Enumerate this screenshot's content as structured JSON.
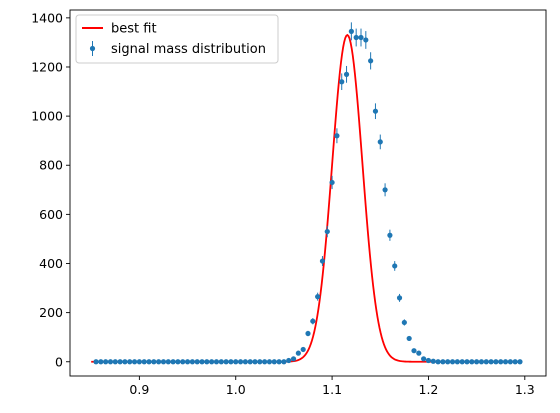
{
  "chart_data": {
    "type": "scatter",
    "title": "",
    "xlabel": "",
    "ylabel": "",
    "xlim": [
      0.828,
      1.322
    ],
    "ylim": [
      -58,
      1432
    ],
    "x_ticks": [
      0.9,
      1.0,
      1.1,
      1.2,
      1.3
    ],
    "x_tick_labels": [
      "0.9",
      "1.0",
      "1.1",
      "1.2",
      "1.3"
    ],
    "y_ticks": [
      0,
      200,
      400,
      600,
      800,
      1000,
      1200,
      1400
    ],
    "y_tick_labels": [
      "0",
      "200",
      "400",
      "600",
      "800",
      "1000",
      "1200",
      "1400"
    ],
    "grid": false,
    "legend_position": "top-left",
    "series": [
      {
        "name": "best fit",
        "kind": "line",
        "color": "#ff0000",
        "model": "gaussian",
        "amplitude": 1330,
        "mean": 1.1158,
        "sigma": 0.0157,
        "x_range": [
          0.85,
          1.295
        ]
      },
      {
        "name": "signal mass distribution",
        "kind": "errorbar",
        "color": "#1f77b4",
        "points": [
          [
            0.855,
            0
          ],
          [
            0.86,
            0
          ],
          [
            0.865,
            0
          ],
          [
            0.87,
            0
          ],
          [
            0.875,
            0
          ],
          [
            0.88,
            0
          ],
          [
            0.885,
            0
          ],
          [
            0.89,
            0
          ],
          [
            0.895,
            0
          ],
          [
            0.9,
            0
          ],
          [
            0.905,
            0
          ],
          [
            0.91,
            0
          ],
          [
            0.915,
            0
          ],
          [
            0.92,
            0
          ],
          [
            0.925,
            0
          ],
          [
            0.93,
            0
          ],
          [
            0.935,
            0
          ],
          [
            0.94,
            0
          ],
          [
            0.945,
            0
          ],
          [
            0.95,
            0
          ],
          [
            0.955,
            0
          ],
          [
            0.96,
            0
          ],
          [
            0.965,
            0
          ],
          [
            0.97,
            0
          ],
          [
            0.975,
            0
          ],
          [
            0.98,
            0
          ],
          [
            0.985,
            0
          ],
          [
            0.99,
            0
          ],
          [
            0.995,
            0
          ],
          [
            1.0,
            0
          ],
          [
            1.005,
            0
          ],
          [
            1.01,
            0
          ],
          [
            1.015,
            0
          ],
          [
            1.02,
            0
          ],
          [
            1.025,
            0
          ],
          [
            1.03,
            0
          ],
          [
            1.035,
            0
          ],
          [
            1.04,
            0
          ],
          [
            1.045,
            0
          ],
          [
            1.05,
            0
          ],
          [
            1.055,
            5
          ],
          [
            1.06,
            12
          ],
          [
            1.065,
            35
          ],
          [
            1.07,
            50
          ],
          [
            1.075,
            115
          ],
          [
            1.08,
            165
          ],
          [
            1.085,
            265
          ],
          [
            1.09,
            410
          ],
          [
            1.095,
            530
          ],
          [
            1.1,
            730
          ],
          [
            1.105,
            920
          ],
          [
            1.11,
            1140
          ],
          [
            1.115,
            1170
          ],
          [
            1.12,
            1345
          ],
          [
            1.125,
            1320
          ],
          [
            1.13,
            1320
          ],
          [
            1.135,
            1310
          ],
          [
            1.14,
            1225
          ],
          [
            1.145,
            1020
          ],
          [
            1.15,
            895
          ],
          [
            1.155,
            700
          ],
          [
            1.16,
            515
          ],
          [
            1.165,
            390
          ],
          [
            1.17,
            260
          ],
          [
            1.175,
            160
          ],
          [
            1.18,
            95
          ],
          [
            1.185,
            45
          ],
          [
            1.19,
            35
          ],
          [
            1.195,
            12
          ],
          [
            1.2,
            5
          ],
          [
            1.205,
            2
          ],
          [
            1.21,
            0
          ],
          [
            1.215,
            0
          ],
          [
            1.22,
            0
          ],
          [
            1.225,
            0
          ],
          [
            1.23,
            0
          ],
          [
            1.235,
            0
          ],
          [
            1.24,
            0
          ],
          [
            1.245,
            0
          ],
          [
            1.25,
            0
          ],
          [
            1.255,
            0
          ],
          [
            1.26,
            0
          ],
          [
            1.265,
            0
          ],
          [
            1.27,
            0
          ],
          [
            1.275,
            0
          ],
          [
            1.28,
            0
          ],
          [
            1.285,
            0
          ],
          [
            1.29,
            0
          ],
          [
            1.295,
            0
          ]
        ]
      }
    ]
  }
}
